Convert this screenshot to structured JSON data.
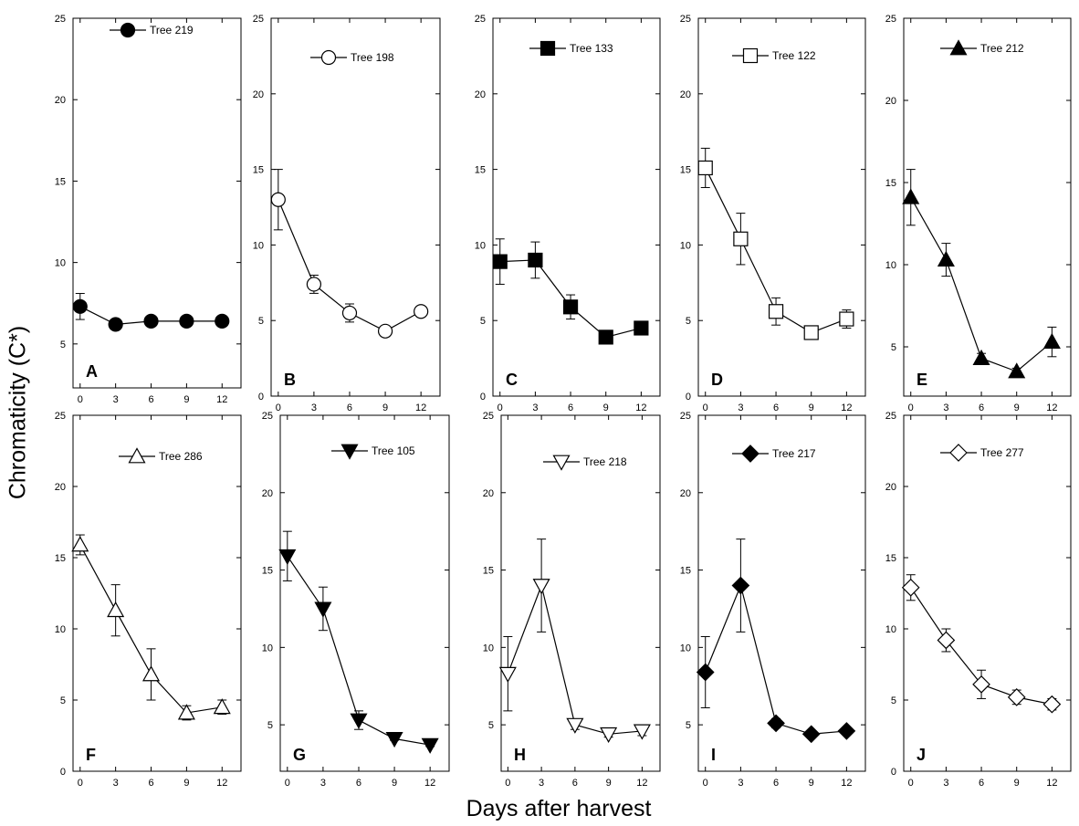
{
  "ylabel": "Chromaticity (C*)",
  "xlabel": "Days after harvest",
  "chart_data": [
    {
      "type": "line",
      "panel_label": "A",
      "legend": "Tree 219",
      "marker": "circle",
      "filled": true,
      "x": [
        0,
        3,
        6,
        9,
        12
      ],
      "y": [
        7.3,
        6.2,
        6.4,
        6.4,
        6.4
      ],
      "err": [
        0.8,
        0.3,
        0.2,
        0.2,
        0.2
      ],
      "ylim": [
        2.3,
        25
      ],
      "yticks": [
        5,
        10,
        15,
        20,
        25
      ],
      "xticks": [
        0,
        3,
        6,
        9,
        12
      ]
    },
    {
      "type": "line",
      "panel_label": "B",
      "legend": "Tree 198",
      "marker": "circle",
      "filled": false,
      "x": [
        0,
        3,
        6,
        9,
        12
      ],
      "y": [
        13,
        7.4,
        5.5,
        4.3,
        5.6
      ],
      "err": [
        2,
        0.6,
        0.6,
        0.2,
        0.2
      ],
      "ylim": [
        0,
        25
      ],
      "yticks": [
        0,
        5,
        10,
        15,
        20,
        25
      ],
      "xticks": [
        0,
        3,
        6,
        9,
        12
      ]
    },
    {
      "type": "line",
      "panel_label": "C",
      "legend": "Tree 133",
      "marker": "square",
      "filled": true,
      "x": [
        0,
        3,
        6,
        9,
        12
      ],
      "y": [
        8.9,
        9,
        5.9,
        3.9,
        4.5
      ],
      "err": [
        1.5,
        1.2,
        0.8,
        0.2,
        0.2
      ],
      "ylim": [
        0,
        25
      ],
      "yticks": [
        0,
        5,
        10,
        15,
        20,
        25
      ],
      "xticks": [
        0,
        3,
        6,
        9,
        12
      ]
    },
    {
      "type": "line",
      "panel_label": "D",
      "legend": "Tree 122",
      "marker": "square",
      "filled": false,
      "x": [
        0,
        3,
        6,
        9,
        12
      ],
      "y": [
        15.1,
        10.4,
        5.6,
        4.2,
        5.1
      ],
      "err": [
        1.3,
        1.7,
        0.9,
        0.2,
        0.6
      ],
      "ylim": [
        0,
        25
      ],
      "yticks": [
        0,
        5,
        10,
        15,
        20,
        25
      ],
      "xticks": [
        0,
        3,
        6,
        9,
        12
      ]
    },
    {
      "type": "line",
      "panel_label": "E",
      "legend": "Tree 212",
      "marker": "triangle-up",
      "filled": true,
      "x": [
        0,
        3,
        6,
        9,
        12
      ],
      "y": [
        14.1,
        10.3,
        4.3,
        3.5,
        5.3
      ],
      "err": [
        1.7,
        1,
        0.3,
        0.2,
        0.9
      ],
      "ylim": [
        2,
        25
      ],
      "yticks": [
        5,
        10,
        15,
        20,
        25
      ],
      "xticks": [
        0,
        3,
        6,
        9,
        12
      ]
    },
    {
      "type": "line",
      "panel_label": "F",
      "legend": "Tree 286",
      "marker": "triangle-up",
      "filled": false,
      "x": [
        0,
        3,
        6,
        9,
        12
      ],
      "y": [
        15.9,
        11.3,
        6.8,
        4.1,
        4.5
      ],
      "err": [
        0.7,
        1.8,
        1.8,
        0.5,
        0.5
      ],
      "ylim": [
        0,
        25
      ],
      "yticks": [
        0,
        5,
        10,
        15,
        20,
        25
      ],
      "xticks": [
        0,
        3,
        6,
        9,
        12
      ]
    },
    {
      "type": "line",
      "panel_label": "G",
      "legend": "Tree 105",
      "marker": "triangle-down",
      "filled": true,
      "x": [
        0,
        3,
        6,
        9,
        12
      ],
      "y": [
        15.9,
        12.5,
        5.3,
        4.1,
        3.7
      ],
      "err": [
        1.6,
        1.4,
        0.6,
        0.1,
        0.1
      ],
      "ylim": [
        2,
        25
      ],
      "yticks": [
        5,
        10,
        15,
        20,
        25
      ],
      "xticks": [
        0,
        3,
        6,
        9,
        12
      ]
    },
    {
      "type": "line",
      "panel_label": "H",
      "legend": "Tree 218",
      "marker": "triangle-down",
      "filled": false,
      "x": [
        0,
        3,
        6,
        9,
        12
      ],
      "y": [
        8.3,
        14,
        5,
        4.4,
        4.6
      ],
      "err": [
        2.4,
        3,
        0.3,
        0.2,
        0.3
      ],
      "ylim": [
        2,
        25
      ],
      "yticks": [
        5,
        10,
        15,
        20,
        25
      ],
      "xticks": [
        0,
        3,
        6,
        9,
        12
      ]
    },
    {
      "type": "line",
      "panel_label": "I",
      "legend": "Tree 217",
      "marker": "diamond",
      "filled": true,
      "x": [
        0,
        3,
        6,
        9,
        12
      ],
      "y": [
        8.4,
        14,
        5.1,
        4.4,
        4.6
      ],
      "err": [
        2.3,
        3,
        0.3,
        0.2,
        0.2
      ],
      "ylim": [
        2,
        25
      ],
      "yticks": [
        5,
        10,
        15,
        20,
        25
      ],
      "xticks": [
        0,
        3,
        6,
        9,
        12
      ]
    },
    {
      "type": "line",
      "panel_label": "J",
      "legend": "Tree 277",
      "marker": "diamond",
      "filled": false,
      "x": [
        0,
        3,
        6,
        9,
        12
      ],
      "y": [
        12.9,
        9.2,
        6.1,
        5.2,
        4.7
      ],
      "err": [
        0.9,
        0.8,
        1,
        0.5,
        0.4
      ],
      "ylim": [
        0,
        25
      ],
      "yticks": [
        0,
        5,
        10,
        15,
        20,
        25
      ],
      "xticks": [
        0,
        3,
        6,
        9,
        12
      ]
    }
  ]
}
